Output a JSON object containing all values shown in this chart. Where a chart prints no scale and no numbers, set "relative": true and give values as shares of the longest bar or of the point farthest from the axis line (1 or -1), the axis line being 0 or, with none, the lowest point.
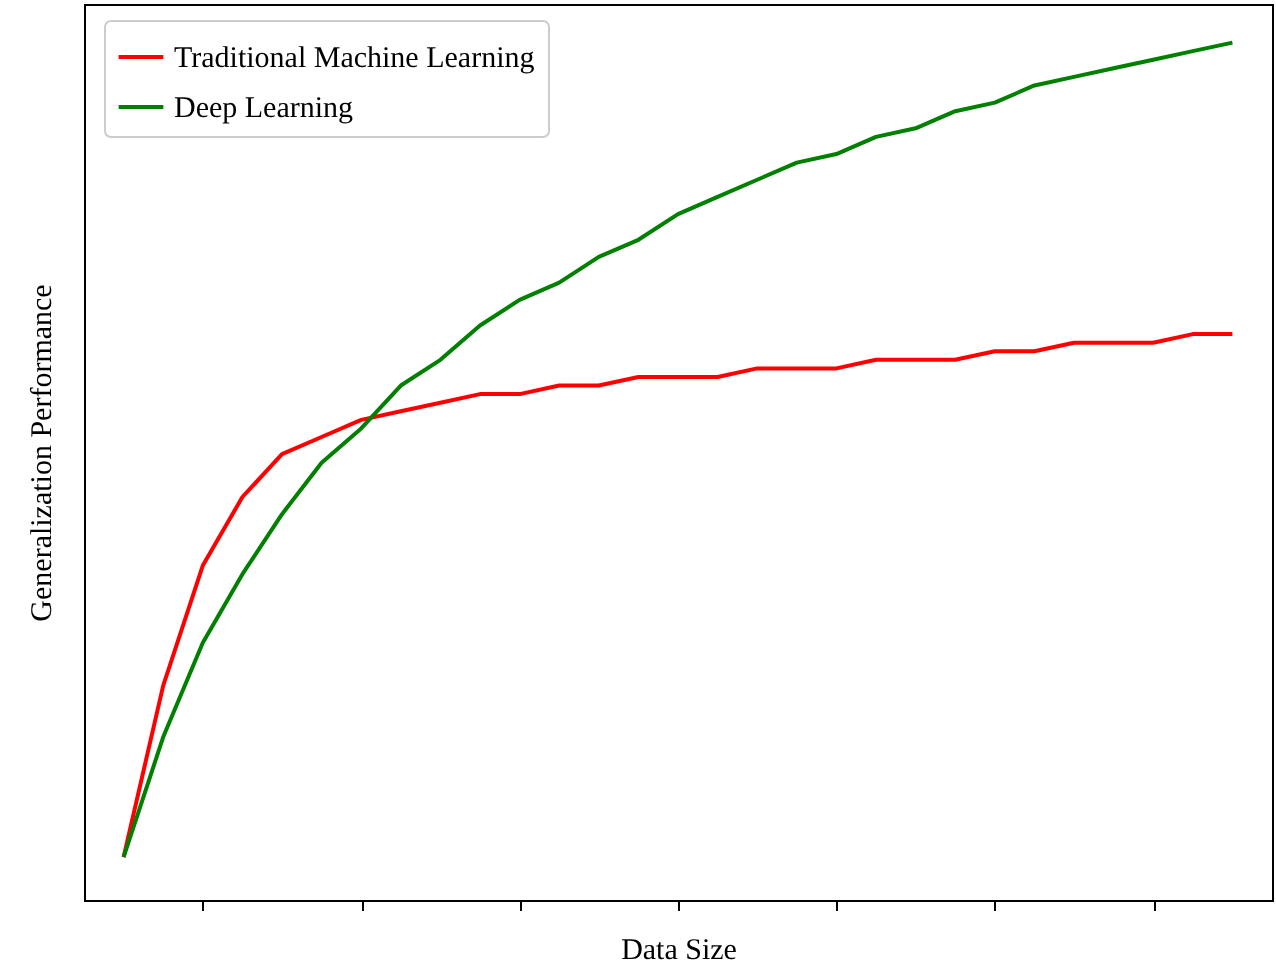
{
  "chart_data": {
    "type": "line",
    "xlabel": "Data Size",
    "ylabel": "Generalization Performance",
    "relative": true,
    "legend": "top left",
    "grid": false,
    "categories": [
      null,
      null,
      null,
      null,
      null,
      null,
      null,
      null,
      null,
      null,
      null,
      null,
      null,
      null,
      null,
      null,
      null,
      null,
      null,
      null,
      null,
      null,
      null,
      null,
      null,
      null,
      null,
      null,
      null
    ],
    "series": [
      {
        "name": "Traditional Machine Learning",
        "color": "#ff0000",
        "values": [
          0.05,
          0.25,
          0.39,
          0.47,
          0.52,
          0.54,
          0.56,
          0.57,
          0.58,
          0.59,
          0.59,
          0.6,
          0.6,
          0.61,
          0.61,
          0.61,
          0.62,
          0.62,
          0.62,
          0.63,
          0.63,
          0.63,
          0.64,
          0.64,
          0.65,
          0.65,
          0.65,
          0.66,
          0.66
        ]
      },
      {
        "name": "Deep Learning",
        "color": "#008000",
        "values": [
          0.05,
          0.19,
          0.3,
          0.38,
          0.45,
          0.51,
          0.55,
          0.6,
          0.63,
          0.67,
          0.7,
          0.72,
          0.75,
          0.77,
          0.8,
          0.82,
          0.84,
          0.86,
          0.87,
          0.89,
          0.9,
          0.92,
          0.93,
          0.95,
          0.96,
          0.97,
          0.98,
          0.99,
          1.0
        ]
      }
    ]
  }
}
